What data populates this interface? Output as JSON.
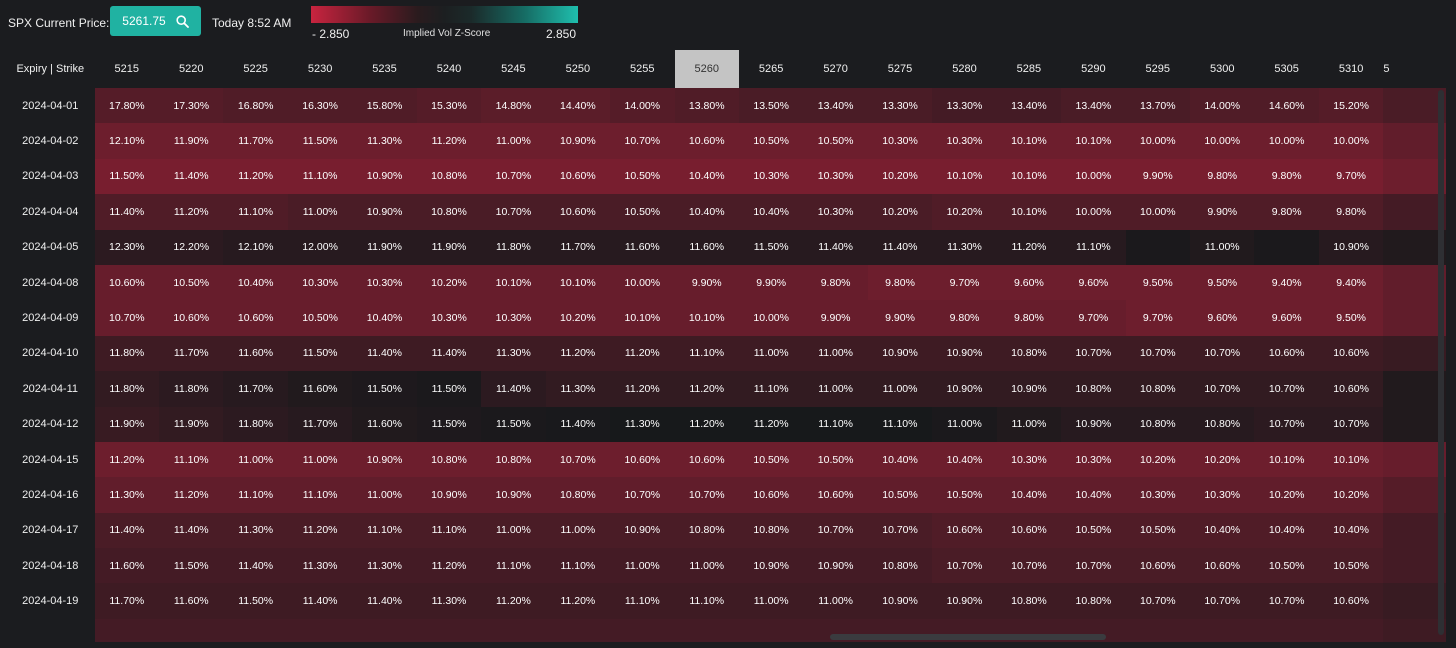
{
  "header": {
    "price_label": "SPX Current Price:",
    "price_value": "5261.75",
    "search_icon": "search-icon",
    "time_label": "Today 8:52 AM"
  },
  "legend": {
    "title": "Implied Vol Z-Score",
    "min_label": "- 2.850",
    "max_label": "2.850",
    "min_color": "#c8243f",
    "mid_color": "#1c1f21",
    "max_color": "#1fbfae"
  },
  "table": {
    "corner_label": "Expiry | Strike",
    "atm_strike": "5260",
    "strikes": [
      "5215",
      "5220",
      "5225",
      "5230",
      "5235",
      "5240",
      "5245",
      "5250",
      "5255",
      "5260",
      "5265",
      "5270",
      "5275",
      "5280",
      "5285",
      "5290",
      "5295",
      "5300",
      "5305",
      "5310",
      "5"
    ],
    "rows": [
      {
        "expiry": "2024-04-01",
        "values": [
          "17.80%",
          "17.30%",
          "16.80%",
          "16.30%",
          "15.80%",
          "15.30%",
          "14.80%",
          "14.40%",
          "14.00%",
          "13.80%",
          "13.50%",
          "13.40%",
          "13.30%",
          "13.30%",
          "13.40%",
          "13.40%",
          "13.70%",
          "14.00%",
          "14.60%",
          "15.20%",
          ""
        ],
        "shades": [
          0.55,
          0.55,
          0.5,
          0.5,
          0.5,
          0.55,
          0.6,
          0.6,
          0.55,
          0.5,
          0.45,
          0.45,
          0.45,
          0.4,
          0.4,
          0.45,
          0.45,
          0.5,
          0.5,
          0.55,
          0.45
        ]
      },
      {
        "expiry": "2024-04-02",
        "values": [
          "12.10%",
          "11.90%",
          "11.70%",
          "11.50%",
          "11.30%",
          "11.20%",
          "11.00%",
          "10.90%",
          "10.70%",
          "10.60%",
          "10.50%",
          "10.50%",
          "10.30%",
          "10.30%",
          "10.10%",
          "10.10%",
          "10.00%",
          "10.00%",
          "10.00%",
          "10.00%",
          ""
        ],
        "shades": [
          0.75,
          0.75,
          0.75,
          0.75,
          0.75,
          0.75,
          0.75,
          0.75,
          0.75,
          0.75,
          0.75,
          0.75,
          0.75,
          0.75,
          0.75,
          0.75,
          0.75,
          0.75,
          0.75,
          0.75,
          0.65
        ]
      },
      {
        "expiry": "2024-04-03",
        "values": [
          "11.50%",
          "11.40%",
          "11.20%",
          "11.10%",
          "10.90%",
          "10.80%",
          "10.70%",
          "10.60%",
          "10.50%",
          "10.40%",
          "10.30%",
          "10.30%",
          "10.20%",
          "10.10%",
          "10.10%",
          "10.00%",
          "9.90%",
          "9.80%",
          "9.80%",
          "9.70%",
          ""
        ],
        "shades": [
          0.85,
          0.85,
          0.85,
          0.85,
          0.85,
          0.85,
          0.85,
          0.85,
          0.85,
          0.85,
          0.85,
          0.85,
          0.85,
          0.85,
          0.85,
          0.85,
          0.85,
          0.85,
          0.85,
          0.85,
          0.75
        ]
      },
      {
        "expiry": "2024-04-04",
        "values": [
          "11.40%",
          "11.20%",
          "11.10%",
          "11.00%",
          "10.90%",
          "10.80%",
          "10.70%",
          "10.60%",
          "10.50%",
          "10.40%",
          "10.40%",
          "10.30%",
          "10.20%",
          "10.20%",
          "10.10%",
          "10.00%",
          "10.00%",
          "9.90%",
          "9.80%",
          "9.80%",
          ""
        ],
        "shades": [
          0.5,
          0.5,
          0.5,
          0.45,
          0.45,
          0.45,
          0.45,
          0.45,
          0.45,
          0.45,
          0.45,
          0.45,
          0.45,
          0.5,
          0.5,
          0.5,
          0.5,
          0.5,
          0.5,
          0.5,
          0.4
        ]
      },
      {
        "expiry": "2024-04-05",
        "values": [
          "12.30%",
          "12.20%",
          "12.10%",
          "12.00%",
          "11.90%",
          "11.90%",
          "11.80%",
          "11.70%",
          "11.60%",
          "11.60%",
          "11.50%",
          "11.40%",
          "11.40%",
          "11.30%",
          "11.20%",
          "11.10%",
          "",
          "11.00%",
          "",
          "10.90%",
          ""
        ],
        "shades": [
          0.2,
          0.2,
          0.15,
          0.15,
          0.15,
          0.15,
          0.15,
          0.15,
          0.15,
          0.15,
          0.15,
          0.15,
          0.15,
          0.15,
          0.15,
          0.15,
          0.05,
          0.1,
          0.05,
          0.15,
          0.1
        ]
      },
      {
        "expiry": "2024-04-08",
        "values": [
          "10.60%",
          "10.50%",
          "10.40%",
          "10.30%",
          "10.30%",
          "10.20%",
          "10.10%",
          "10.10%",
          "10.00%",
          "9.90%",
          "9.90%",
          "9.80%",
          "9.80%",
          "9.70%",
          "9.60%",
          "9.60%",
          "9.50%",
          "9.50%",
          "9.40%",
          "9.40%",
          ""
        ],
        "shades": [
          0.7,
          0.7,
          0.7,
          0.7,
          0.7,
          0.7,
          0.7,
          0.7,
          0.7,
          0.7,
          0.7,
          0.7,
          0.75,
          0.75,
          0.75,
          0.75,
          0.75,
          0.75,
          0.75,
          0.75,
          0.65
        ]
      },
      {
        "expiry": "2024-04-09",
        "values": [
          "10.70%",
          "10.60%",
          "10.60%",
          "10.50%",
          "10.40%",
          "10.30%",
          "10.30%",
          "10.20%",
          "10.10%",
          "10.10%",
          "10.00%",
          "9.90%",
          "9.90%",
          "9.80%",
          "9.80%",
          "9.70%",
          "9.70%",
          "9.60%",
          "9.60%",
          "9.50%",
          ""
        ],
        "shades": [
          0.7,
          0.7,
          0.7,
          0.7,
          0.7,
          0.7,
          0.7,
          0.7,
          0.7,
          0.7,
          0.7,
          0.7,
          0.7,
          0.7,
          0.7,
          0.7,
          0.75,
          0.75,
          0.75,
          0.75,
          0.65
        ]
      },
      {
        "expiry": "2024-04-10",
        "values": [
          "11.80%",
          "11.70%",
          "11.60%",
          "11.50%",
          "11.40%",
          "11.40%",
          "11.30%",
          "11.20%",
          "11.20%",
          "11.10%",
          "11.00%",
          "11.00%",
          "10.90%",
          "10.90%",
          "10.80%",
          "10.70%",
          "10.70%",
          "10.70%",
          "10.60%",
          "10.60%",
          ""
        ],
        "shades": [
          0.35,
          0.35,
          0.35,
          0.35,
          0.35,
          0.35,
          0.35,
          0.35,
          0.35,
          0.35,
          0.35,
          0.35,
          0.35,
          0.35,
          0.35,
          0.35,
          0.35,
          0.35,
          0.35,
          0.35,
          0.3
        ]
      },
      {
        "expiry": "2024-04-11",
        "values": [
          "11.80%",
          "11.80%",
          "11.70%",
          "11.60%",
          "11.50%",
          "11.50%",
          "11.40%",
          "11.30%",
          "11.20%",
          "11.20%",
          "11.10%",
          "11.00%",
          "11.00%",
          "10.90%",
          "10.90%",
          "10.80%",
          "10.80%",
          "10.70%",
          "10.70%",
          "10.60%",
          ""
        ],
        "shades": [
          0.25,
          0.2,
          0.15,
          0.1,
          0.08,
          0.05,
          0.2,
          0.25,
          0.25,
          0.25,
          0.25,
          0.25,
          0.25,
          0.25,
          0.25,
          0.25,
          0.25,
          0.25,
          0.25,
          0.25,
          0.1
        ]
      },
      {
        "expiry": "2024-04-12",
        "values": [
          "11.90%",
          "11.90%",
          "11.80%",
          "11.70%",
          "11.60%",
          "11.50%",
          "11.50%",
          "11.40%",
          "11.30%",
          "11.20%",
          "11.20%",
          "11.10%",
          "11.10%",
          "11.00%",
          "11.00%",
          "10.90%",
          "10.80%",
          "10.80%",
          "10.70%",
          "10.70%",
          ""
        ],
        "shades": [
          0.3,
          0.25,
          0.2,
          0.15,
          0.1,
          0.08,
          0.05,
          0.03,
          0.02,
          0.02,
          0.02,
          0.02,
          0.02,
          0.05,
          0.1,
          0.15,
          0.15,
          0.15,
          0.2,
          0.2,
          0.1
        ]
      },
      {
        "expiry": "2024-04-15",
        "values": [
          "11.20%",
          "11.10%",
          "11.00%",
          "11.00%",
          "10.90%",
          "10.80%",
          "10.80%",
          "10.70%",
          "10.60%",
          "10.60%",
          "10.50%",
          "10.50%",
          "10.40%",
          "10.40%",
          "10.30%",
          "10.30%",
          "10.20%",
          "10.20%",
          "10.10%",
          "10.10%",
          ""
        ],
        "shades": [
          0.75,
          0.75,
          0.75,
          0.75,
          0.75,
          0.75,
          0.75,
          0.75,
          0.75,
          0.75,
          0.75,
          0.75,
          0.75,
          0.75,
          0.75,
          0.75,
          0.75,
          0.75,
          0.75,
          0.75,
          0.7
        ]
      },
      {
        "expiry": "2024-04-16",
        "values": [
          "11.30%",
          "11.20%",
          "11.10%",
          "11.10%",
          "11.00%",
          "10.90%",
          "10.90%",
          "10.80%",
          "10.70%",
          "10.70%",
          "10.60%",
          "10.60%",
          "10.50%",
          "10.50%",
          "10.40%",
          "10.40%",
          "10.30%",
          "10.30%",
          "10.20%",
          "10.20%",
          ""
        ],
        "shades": [
          0.65,
          0.65,
          0.65,
          0.65,
          0.65,
          0.65,
          0.65,
          0.65,
          0.65,
          0.65,
          0.65,
          0.65,
          0.65,
          0.65,
          0.65,
          0.65,
          0.65,
          0.65,
          0.65,
          0.65,
          0.55
        ]
      },
      {
        "expiry": "2024-04-17",
        "values": [
          "11.40%",
          "11.40%",
          "11.30%",
          "11.20%",
          "11.10%",
          "11.10%",
          "11.00%",
          "11.00%",
          "10.90%",
          "10.80%",
          "10.80%",
          "10.70%",
          "10.70%",
          "10.60%",
          "10.60%",
          "10.50%",
          "10.50%",
          "10.40%",
          "10.40%",
          "10.40%",
          ""
        ],
        "shades": [
          0.45,
          0.45,
          0.45,
          0.45,
          0.45,
          0.45,
          0.45,
          0.45,
          0.45,
          0.45,
          0.45,
          0.45,
          0.45,
          0.5,
          0.5,
          0.5,
          0.5,
          0.5,
          0.5,
          0.5,
          0.4
        ]
      },
      {
        "expiry": "2024-04-18",
        "values": [
          "11.60%",
          "11.50%",
          "11.40%",
          "11.30%",
          "11.30%",
          "11.20%",
          "11.10%",
          "11.10%",
          "11.00%",
          "11.00%",
          "10.90%",
          "10.90%",
          "10.80%",
          "10.70%",
          "10.70%",
          "10.70%",
          "10.60%",
          "10.60%",
          "10.50%",
          "10.50%",
          ""
        ],
        "shades": [
          0.4,
          0.4,
          0.4,
          0.4,
          0.4,
          0.4,
          0.4,
          0.4,
          0.4,
          0.4,
          0.4,
          0.4,
          0.4,
          0.45,
          0.45,
          0.45,
          0.45,
          0.45,
          0.45,
          0.45,
          0.4
        ]
      },
      {
        "expiry": "2024-04-19",
        "values": [
          "11.70%",
          "11.60%",
          "11.50%",
          "11.40%",
          "11.40%",
          "11.30%",
          "11.20%",
          "11.20%",
          "11.10%",
          "11.10%",
          "11.00%",
          "11.00%",
          "10.90%",
          "10.90%",
          "10.80%",
          "10.80%",
          "10.70%",
          "10.70%",
          "10.70%",
          "10.60%",
          ""
        ],
        "shades": [
          0.35,
          0.35,
          0.35,
          0.35,
          0.35,
          0.35,
          0.35,
          0.35,
          0.35,
          0.35,
          0.35,
          0.35,
          0.35,
          0.35,
          0.35,
          0.35,
          0.35,
          0.35,
          0.35,
          0.35,
          0.3
        ]
      },
      {
        "expiry": "",
        "values": [
          "",
          "",
          "",
          "",
          "",
          "",
          "",
          "",
          "",
          "",
          "",
          "",
          "",
          "",
          "",
          "",
          "",
          "",
          "",
          "",
          ""
        ],
        "shades": [
          0.4,
          0.4,
          0.4,
          0.4,
          0.4,
          0.4,
          0.4,
          0.4,
          0.4,
          0.4,
          0.4,
          0.4,
          0.4,
          0.4,
          0.4,
          0.4,
          0.4,
          0.4,
          0.4,
          0.4,
          0.35
        ]
      }
    ]
  }
}
